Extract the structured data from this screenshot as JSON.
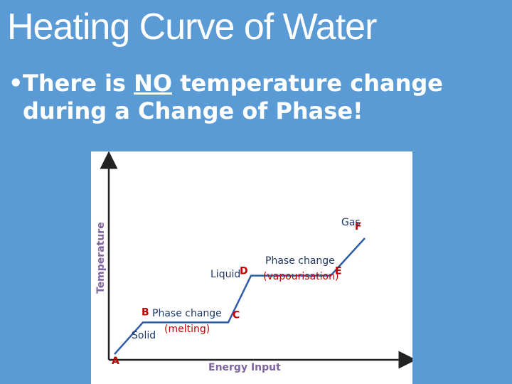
{
  "slide": {
    "title": "Heating Curve of Water",
    "bullet": {
      "pre": "There is ",
      "emphasis": "NO",
      "post": " temperature change",
      "line2": "during a Change of Phase!"
    }
  },
  "colors": {
    "background": "#5b9bd5",
    "curve": "#2e5ba8",
    "point_labels": "#c00000",
    "axis_labels": "#8064a2",
    "region_labels": "#1f3864"
  },
  "chart_data": {
    "type": "line",
    "xlabel": "Energy Input",
    "ylabel": "Temperature",
    "xlim": [
      0,
      10
    ],
    "ylim": [
      0,
      10
    ],
    "grid": false,
    "points": [
      {
        "label": "A",
        "x": 0.2,
        "y": 0.3
      },
      {
        "label": "B",
        "x": 1.2,
        "y": 2.0
      },
      {
        "label": "C",
        "x": 4.2,
        "y": 2.0
      },
      {
        "label": "D",
        "x": 5.0,
        "y": 4.5
      },
      {
        "label": "E",
        "x": 7.8,
        "y": 4.5
      },
      {
        "label": "F",
        "x": 9.0,
        "y": 6.5
      }
    ],
    "regions": [
      {
        "name": "Solid"
      },
      {
        "name": "Liquid"
      },
      {
        "name": "Gas"
      }
    ],
    "phase_changes": [
      {
        "label": "Phase change",
        "sub": "(melting)"
      },
      {
        "label": "Phase change",
        "sub": "(vapourisation)"
      }
    ]
  }
}
